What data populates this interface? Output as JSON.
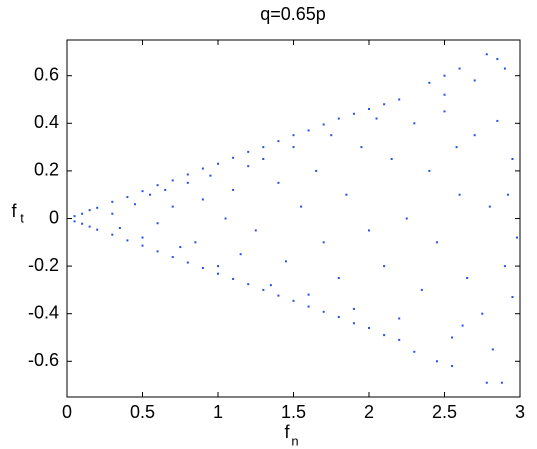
{
  "chart_data": {
    "type": "scatter",
    "title": "q=0.65p",
    "xlabel": {
      "text": "f",
      "subscript": "n"
    },
    "ylabel": {
      "text": "f",
      "subscript": "t"
    },
    "xlim": [
      0,
      3
    ],
    "ylim": [
      -0.75,
      0.75
    ],
    "xticks": [
      0,
      0.5,
      1,
      1.5,
      2,
      2.5,
      3
    ],
    "yticks": [
      -0.6,
      -0.4,
      -0.2,
      0,
      0.2,
      0.4,
      0.6
    ],
    "grid": false,
    "series": [
      {
        "color": "#2850e8",
        "x": [
          0.05,
          0.1,
          0.15,
          0.2,
          0.3,
          0.4,
          0.5,
          0.6,
          0.7,
          0.8,
          0.9,
          1.0,
          1.1,
          1.2,
          1.3,
          1.4,
          1.5,
          1.6,
          1.7,
          1.8,
          1.9,
          2.0,
          2.1,
          2.2,
          2.4,
          2.5,
          2.6,
          2.78,
          2.85,
          2.9,
          0.05,
          0.1,
          0.15,
          0.2,
          0.3,
          0.4,
          0.5,
          0.6,
          0.7,
          0.8,
          0.9,
          1.0,
          1.1,
          1.2,
          1.3,
          1.4,
          1.5,
          1.6,
          1.7,
          1.8,
          1.9,
          2.0,
          2.1,
          2.2,
          2.3,
          2.45,
          2.55,
          2.78,
          2.88,
          2.95,
          0.3,
          0.35,
          0.45,
          0.5,
          0.55,
          0.6,
          0.65,
          0.7,
          0.75,
          0.8,
          0.85,
          0.9,
          0.95,
          1.0,
          1.05,
          1.1,
          1.15,
          1.2,
          1.25,
          1.3,
          1.35,
          1.4,
          1.45,
          1.5,
          1.55,
          1.6,
          1.65,
          1.7,
          1.75,
          1.8,
          1.85,
          1.9,
          1.95,
          2.0,
          2.05,
          2.1,
          2.15,
          2.2,
          2.25,
          2.3,
          2.35,
          2.4,
          2.45,
          2.5,
          2.55,
          2.6,
          2.65,
          2.7,
          2.75,
          2.8,
          2.85,
          2.9,
          2.92,
          2.95,
          2.98,
          2.5,
          2.62,
          2.7,
          2.82,
          2.58
        ],
        "values": [
          0.01,
          0.02,
          0.035,
          0.045,
          0.07,
          0.09,
          0.115,
          0.14,
          0.16,
          0.185,
          0.21,
          0.23,
          0.255,
          0.28,
          0.3,
          0.325,
          0.35,
          0.37,
          0.395,
          0.42,
          0.44,
          0.46,
          0.48,
          0.5,
          0.57,
          0.6,
          0.63,
          0.69,
          0.67,
          0.63,
          -0.012,
          -0.022,
          -0.034,
          -0.047,
          -0.068,
          -0.092,
          -0.114,
          -0.138,
          -0.162,
          -0.185,
          -0.208,
          -0.232,
          -0.254,
          -0.276,
          -0.3,
          -0.324,
          -0.346,
          -0.37,
          -0.392,
          -0.414,
          -0.44,
          -0.46,
          -0.49,
          -0.51,
          -0.56,
          -0.6,
          -0.62,
          -0.69,
          -0.69,
          -0.33,
          0.02,
          -0.04,
          0.06,
          -0.08,
          0.1,
          -0.02,
          0.12,
          0.05,
          -0.12,
          0.15,
          -0.1,
          0.08,
          0.18,
          -0.2,
          0.0,
          0.12,
          -0.15,
          0.22,
          -0.05,
          0.25,
          -0.28,
          0.15,
          -0.18,
          0.3,
          0.05,
          -0.32,
          0.2,
          -0.1,
          0.35,
          -0.25,
          0.1,
          -0.38,
          0.3,
          -0.05,
          0.42,
          -0.2,
          0.25,
          -0.42,
          0.0,
          0.4,
          -0.3,
          0.2,
          -0.1,
          0.45,
          -0.5,
          0.1,
          -0.25,
          0.35,
          -0.4,
          0.05,
          0.41,
          -0.2,
          0.1,
          0.25,
          -0.08,
          0.52,
          -0.45,
          0.58,
          -0.55,
          0.3
        ]
      }
    ]
  }
}
